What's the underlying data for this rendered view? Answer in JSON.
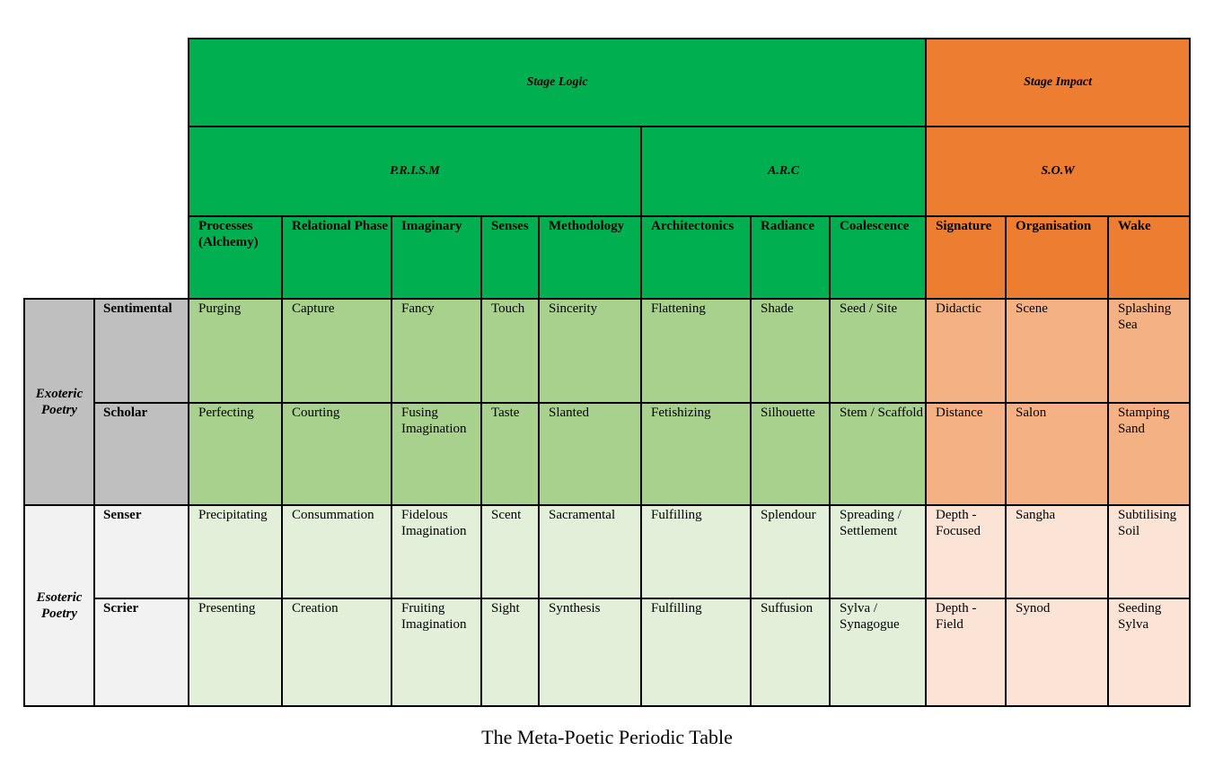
{
  "header": {
    "stage_logic": "Stage Logic",
    "stage_impact": "Stage Impact",
    "prism": "P.R.I.S.M",
    "arc": "A.R.C",
    "sow": "S.O.W"
  },
  "columns": [
    "Processes (Alchemy)",
    "Relational Phase",
    "Imaginary",
    "Senses",
    "Methodology",
    "Architectonics",
    "Radiance",
    "Coalescence",
    "Signature",
    "Organisation",
    "Wake"
  ],
  "groups": {
    "exoteric": "Exoteric Poetry",
    "esoteric": "Esoteric Poetry"
  },
  "rows": [
    {
      "label": "Sentimental",
      "cells": [
        "Purging",
        "Capture",
        "Fancy",
        "Touch",
        "Sincerity",
        "Flattening",
        "Shade",
        "Seed / Site",
        "Didactic",
        "Scene",
        "Splashing Sea"
      ]
    },
    {
      "label": "Scholar",
      "cells": [
        "Perfecting",
        "Courting",
        "Fusing Imagination",
        "Taste",
        "Slanted",
        "Fetishizing",
        "Silhouette",
        "Stem / Scaffold",
        "Distance",
        "Salon",
        "Stamping Sand"
      ]
    },
    {
      "label": "Senser",
      "cells": [
        "Precipitating",
        "Consummation",
        "Fidelous Imagination",
        "Scent",
        "Sacramental",
        "Fulfilling",
        "Splendour",
        "Spreading / Settlement",
        "Depth - Focused",
        "Sangha",
        "Subtilising Soil"
      ]
    },
    {
      "label": "Scrier",
      "cells": [
        "Presenting",
        "Creation",
        "Fruiting Imagination",
        "Sight",
        "Synthesis",
        "Fulfilling",
        "Suffusion",
        "Sylva / Synagogue",
        "Depth - Field",
        "Synod",
        "Seeding Sylva"
      ]
    }
  ],
  "caption": "The Meta-Poetic Periodic Table",
  "colors": {
    "green_dark": "#00b050",
    "orange_dark": "#ed7d31",
    "green_mid": "#a9d18e",
    "orange_mid": "#f4b183",
    "green_light": "#e2efd9",
    "orange_light": "#fbe3d6",
    "grey_dark": "#bfbfbf",
    "grey_light": "#f2f2f2"
  }
}
